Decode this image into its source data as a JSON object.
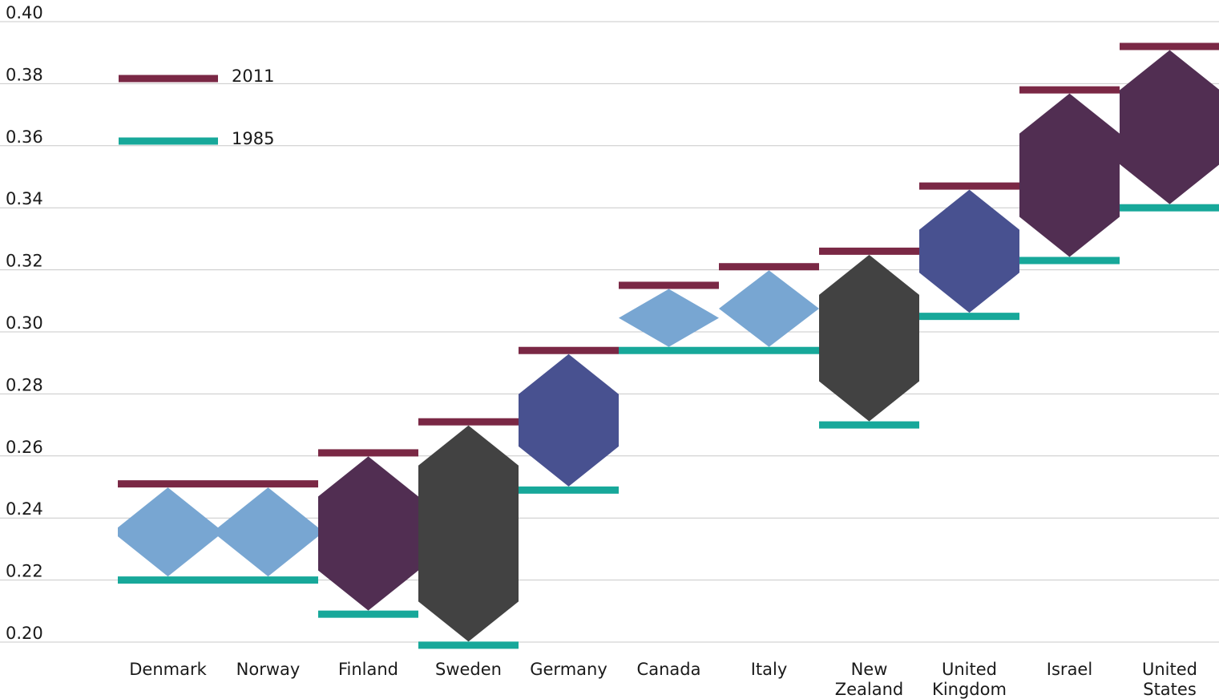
{
  "chart_data": {
    "type": "range",
    "title": "",
    "xlabel": "",
    "ylabel": "",
    "ylim": [
      0.2,
      0.4
    ],
    "yticks": [
      "0.20",
      "0.22",
      "0.24",
      "0.26",
      "0.28",
      "0.30",
      "0.32",
      "0.34",
      "0.36",
      "0.38",
      "0.40"
    ],
    "grid": true,
    "legend_position": "top-left",
    "series": [
      {
        "name": "2011",
        "color": "#7a2845"
      },
      {
        "name": "1985",
        "color": "#17a89a"
      }
    ],
    "categories": [
      {
        "label": [
          "Denmark"
        ],
        "v1985": 0.22,
        "v2011": 0.251,
        "fill": "#78a6d2"
      },
      {
        "label": [
          "Norway"
        ],
        "v1985": 0.22,
        "v2011": 0.251,
        "fill": "#78a6d2"
      },
      {
        "label": [
          "Finland"
        ],
        "v1985": 0.209,
        "v2011": 0.261,
        "fill": "#512e52"
      },
      {
        "label": [
          "Sweden"
        ],
        "v1985": 0.199,
        "v2011": 0.271,
        "fill": "#424242"
      },
      {
        "label": [
          "Germany"
        ],
        "v1985": 0.249,
        "v2011": 0.294,
        "fill": "#485190"
      },
      {
        "label": [
          "Canada"
        ],
        "v1985": 0.294,
        "v2011": 0.315,
        "fill": "#78a6d2"
      },
      {
        "label": [
          "Italy"
        ],
        "v1985": 0.294,
        "v2011": 0.321,
        "fill": "#78a6d2"
      },
      {
        "label": [
          "New",
          "Zealand"
        ],
        "v1985": 0.27,
        "v2011": 0.326,
        "fill": "#424242"
      },
      {
        "label": [
          "United",
          "Kingdom"
        ],
        "v1985": 0.305,
        "v2011": 0.347,
        "fill": "#485190"
      },
      {
        "label": [
          "Israel"
        ],
        "v1985": 0.323,
        "v2011": 0.378,
        "fill": "#512e52"
      },
      {
        "label": [
          "United",
          "States"
        ],
        "v1985": 0.34,
        "v2011": 0.392,
        "fill": "#512e52"
      }
    ]
  }
}
